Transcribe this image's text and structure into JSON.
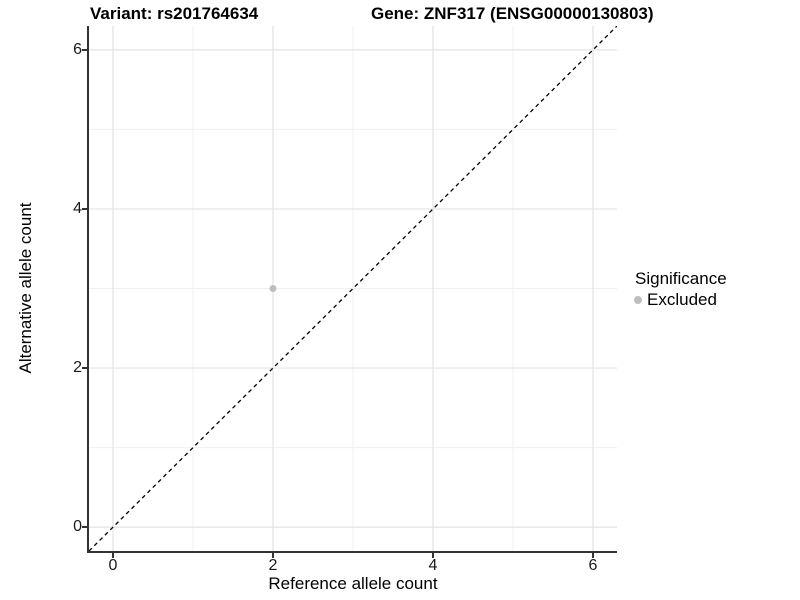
{
  "titles": {
    "variant": "Variant: rs201764634",
    "gene": "Gene: ZNF317 (ENSG00000130803)"
  },
  "chart_data": {
    "type": "scatter",
    "xlabel": "Reference allele count",
    "ylabel": "Alternative allele count",
    "xlim": [
      -0.3,
      6.3
    ],
    "ylim": [
      -0.3,
      6.3
    ],
    "x_major_ticks": [
      0,
      2,
      4,
      6
    ],
    "y_major_ticks": [
      0,
      2,
      4,
      6
    ],
    "x_minor_ticks": [
      1,
      3,
      5
    ],
    "y_minor_ticks": [
      1,
      3,
      5
    ],
    "grid": true,
    "points": [
      {
        "x": 2,
        "y": 3,
        "series": "Excluded",
        "color": "#bebebe",
        "radius": 3.5
      }
    ],
    "identity_line": {
      "style": "dashed",
      "color": "#000000",
      "from": -0.3,
      "to": 6.3
    },
    "legend": {
      "title": "Significance",
      "position": "right",
      "entries": [
        {
          "label": "Excluded",
          "color": "#bebebe",
          "marker": "circle"
        }
      ]
    }
  },
  "colors": {
    "grid_major": "#e3e3e3",
    "grid_minor": "#f0f0f0",
    "axis": "#333333",
    "background": "#ffffff"
  }
}
